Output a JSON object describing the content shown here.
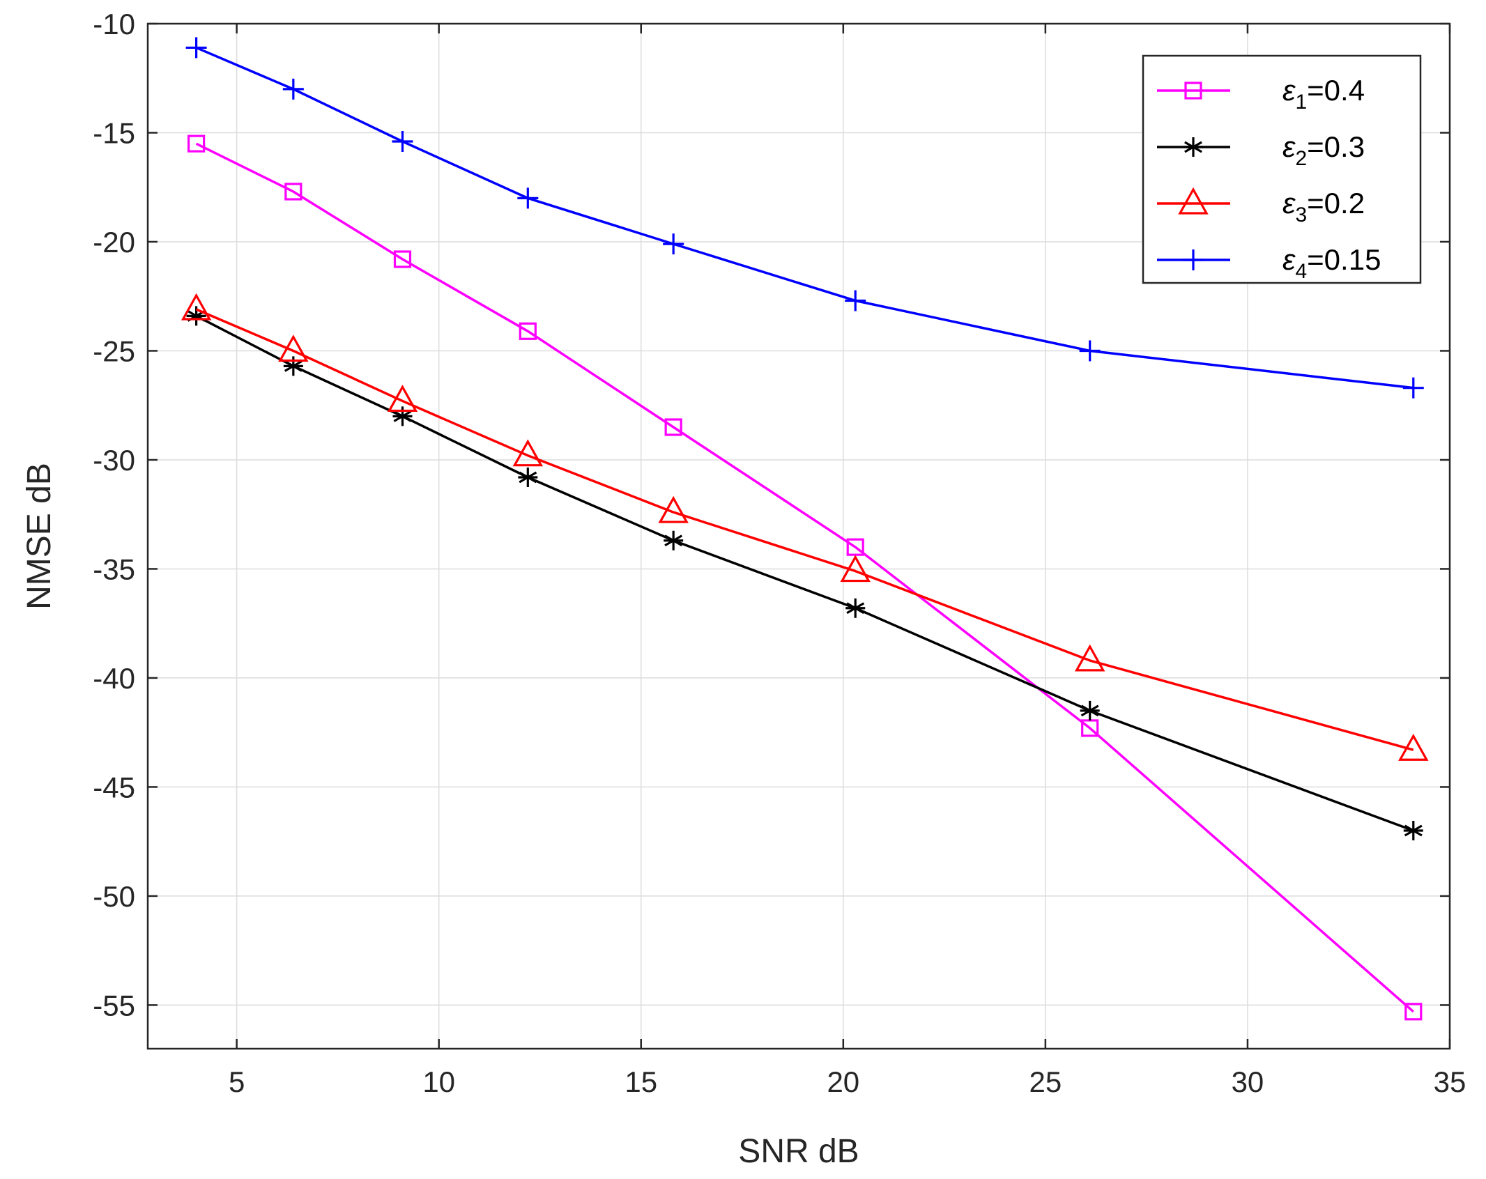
{
  "chart_data": {
    "type": "line",
    "title": "",
    "xlabel": "SNR dB",
    "ylabel": "NMSE dB",
    "xlim": [
      2.8,
      35
    ],
    "ylim": [
      -57,
      -10
    ],
    "xticks": [
      5,
      10,
      15,
      20,
      25,
      30,
      35
    ],
    "yticks": [
      -10,
      -15,
      -20,
      -25,
      -30,
      -35,
      -40,
      -45,
      -50,
      -55
    ],
    "grid": true,
    "legend_position": "top-right",
    "series": [
      {
        "name": "ε1=0.4",
        "symbol": "ε",
        "subscript": "1",
        "value_text": "=0.4",
        "color": "#ff00ff",
        "marker": "square",
        "x": [
          4,
          6.4,
          9.1,
          12.2,
          15.8,
          20.3,
          26.1,
          34.1
        ],
        "values": [
          -15.5,
          -17.7,
          -20.8,
          -24.1,
          -28.5,
          -34.0,
          -42.3,
          -55.3
        ]
      },
      {
        "name": "ε2=0.3",
        "symbol": "ε",
        "subscript": "2",
        "value_text": "=0.3",
        "color": "#000000",
        "marker": "asterisk",
        "x": [
          4,
          6.4,
          9.1,
          12.2,
          15.8,
          20.3,
          26.1,
          34.1
        ],
        "values": [
          -23.4,
          -25.7,
          -28.0,
          -30.8,
          -33.7,
          -36.8,
          -41.5,
          -47.0
        ]
      },
      {
        "name": "ε3=0.2",
        "symbol": "ε",
        "subscript": "3",
        "value_text": "=0.2",
        "color": "#ff0000",
        "marker": "triangle",
        "x": [
          4,
          6.4,
          9.1,
          12.2,
          15.8,
          20.3,
          26.1,
          34.1
        ],
        "values": [
          -23.1,
          -25.0,
          -27.3,
          -29.8,
          -32.4,
          -35.1,
          -39.2,
          -43.3
        ]
      },
      {
        "name": "ε4=0.15",
        "symbol": "ε",
        "subscript": "4",
        "value_text": "=0.15",
        "color": "#0000ff",
        "marker": "plus",
        "x": [
          4,
          6.4,
          9.1,
          12.2,
          15.8,
          20.3,
          26.1,
          34.1
        ],
        "values": [
          -11.1,
          -13.0,
          -15.4,
          -18.0,
          -20.1,
          -22.7,
          -25.0,
          -26.7
        ]
      }
    ]
  }
}
